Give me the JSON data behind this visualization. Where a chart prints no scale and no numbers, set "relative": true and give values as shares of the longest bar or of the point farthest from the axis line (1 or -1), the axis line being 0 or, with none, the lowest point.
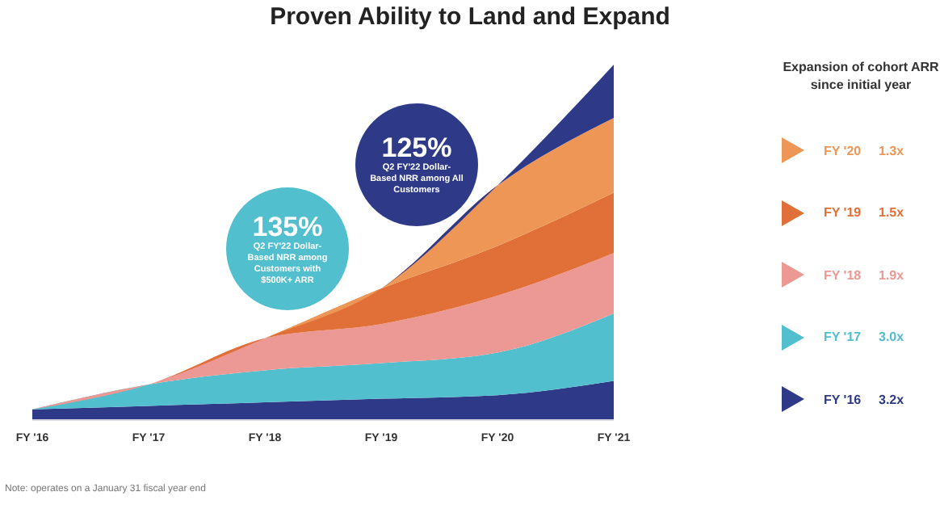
{
  "chart_data": {
    "type": "area",
    "title": "Proven Ability to Land and Expand",
    "legend_title": "Expansion of cohort ARR since initial year",
    "categories": [
      "FY '16",
      "FY '17",
      "FY '18",
      "FY '19",
      "FY '20",
      "FY '21"
    ],
    "relative": true,
    "stacked": true,
    "legend": "right",
    "grid": false,
    "series": [
      {
        "name": "FY '16",
        "color": "#2e3a87",
        "values": [
          0.03,
          0.04,
          0.05,
          0.06,
          0.07,
          0.11
        ]
      },
      {
        "name": "FY '17",
        "color": "#52bfcf",
        "values": [
          0,
          0.06,
          0.09,
          0.1,
          0.12,
          0.19
        ]
      },
      {
        "name": "FY '18",
        "color": "#ec9894",
        "values": [
          0,
          0,
          0.09,
          0.11,
          0.16,
          0.17
        ]
      },
      {
        "name": "FY '19",
        "color": "#e07038",
        "values": [
          0,
          0,
          0,
          0.1,
          0.14,
          0.17
        ]
      },
      {
        "name": "FY '20",
        "color": "#ee9655",
        "values": [
          0,
          0,
          0,
          0,
          0.17,
          0.21
        ]
      },
      {
        "color": "#2e3a87",
        "values": [
          0,
          0,
          0,
          0,
          0,
          0.15
        ]
      }
    ],
    "annotations": [
      "135%",
      "Q2 FY'22  Dollar-Based NRR among Customers with $500K+ ARR",
      "125%",
      "Q2 FY'22 Dollar-Based NRR among All Customers",
      "3.2x",
      "3.0x",
      "1.9x",
      "1.5x",
      "1.3x",
      "Note: operates on a January 31 fiscal year end"
    ]
  }
}
